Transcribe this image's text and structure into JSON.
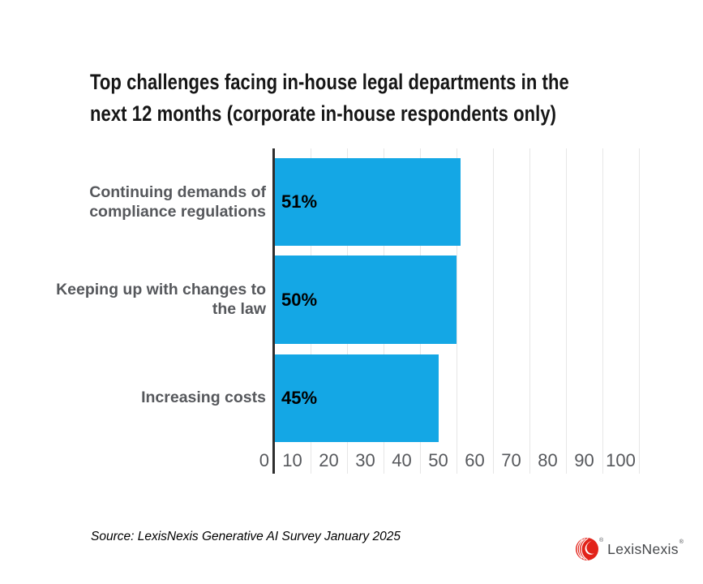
{
  "title": {
    "line1": "Top challenges facing in-house legal departments in the",
    "line2": "next 12 months (corporate in-house respondents only)"
  },
  "chart_data": {
    "type": "bar",
    "orientation": "horizontal",
    "title": "Top challenges facing in-house legal departments in the next 12 months (corporate in-house respondents only)",
    "categories": [
      "Continuing demands of compliance regulations",
      "Keeping up with changes to the law",
      "Increasing costs"
    ],
    "values": [
      51,
      50,
      45
    ],
    "value_labels": [
      "51%",
      "50%",
      "45%"
    ],
    "xlabel": "",
    "ylabel": "",
    "xlim": [
      0,
      100
    ],
    "x_ticks": [
      0,
      10,
      20,
      30,
      40,
      50,
      60,
      70,
      80,
      90,
      100
    ],
    "grid": true,
    "legend": false,
    "bar_color": "#14A7E5"
  },
  "labels": [
    {
      "line1": "Continuing demands of",
      "line2": "compliance regulations"
    },
    {
      "line1": "Keeping up with changes to",
      "line2": "the law"
    },
    {
      "line1": "Increasing costs"
    }
  ],
  "source": "Source: LexisNexis Generative AI Survey January 2025",
  "logo": {
    "text": "LexisNexis",
    "registered": "®",
    "icon": "lexisnexis-flame-icon",
    "icon_color": "#E2231A",
    "text_color": "#46484B"
  },
  "colors": {
    "bar": "#14A7E5",
    "axis_line": "#2E2E2E",
    "gridline": "#E6E6E6",
    "tick_label": "#56585C",
    "category_label": "#56585C",
    "title": "#161616",
    "value_label": "#000000",
    "background": "#FFFFFF"
  }
}
